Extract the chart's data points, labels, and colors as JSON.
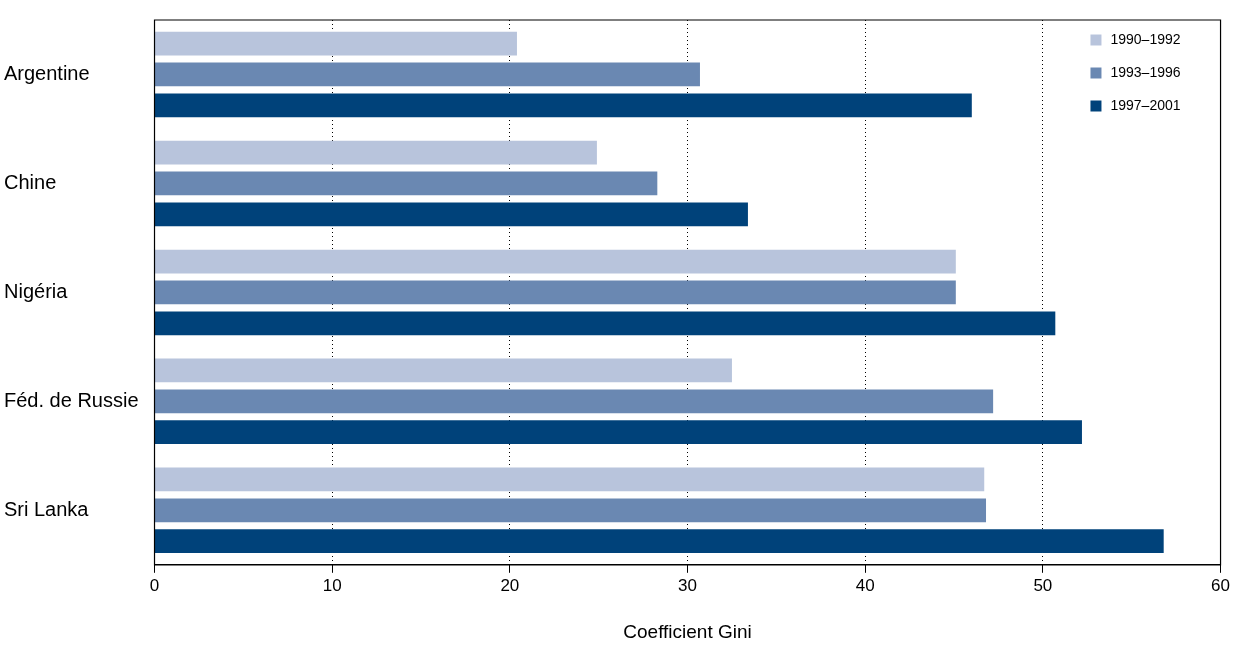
{
  "chart_data": {
    "type": "bar",
    "orientation": "horizontal",
    "xlabel": "Coefficient Gini",
    "categories": [
      "Argentine",
      "Chine",
      "Nigéria",
      "Féd. de Russie",
      "Sri Lanka"
    ],
    "series": [
      {
        "name": "1990–1992",
        "color": "#b8c4dc",
        "values": [
          20.4,
          24.9,
          45.1,
          32.5,
          46.7
        ]
      },
      {
        "name": "1993–1996",
        "color": "#6a88b2",
        "values": [
          30.7,
          28.3,
          45.1,
          47.2,
          46.8
        ]
      },
      {
        "name": "1997–2001",
        "color": "#00427a",
        "values": [
          46.0,
          33.4,
          50.7,
          52.2,
          56.8
        ]
      }
    ],
    "xlim": [
      0,
      60
    ],
    "xticks": [
      0,
      10,
      20,
      30,
      40,
      50,
      60
    ],
    "grid": "x",
    "legend": "top right"
  }
}
